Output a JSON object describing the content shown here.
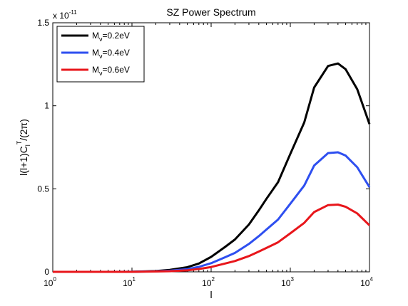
{
  "chart_data": {
    "type": "line",
    "title": "SZ Power Spectrum",
    "xlabel": "l",
    "ylabel": "l(l+1)C_l^T/(2π)",
    "x_scale": "log",
    "xlim": [
      1,
      10000
    ],
    "ylim": [
      0,
      1.5e-11
    ],
    "exponent_label": "x 10",
    "exponent_value": "-11",
    "x_ticks": [
      {
        "base": "10",
        "exp": "0"
      },
      {
        "base": "10",
        "exp": "1"
      },
      {
        "base": "10",
        "exp": "2"
      },
      {
        "base": "10",
        "exp": "3"
      },
      {
        "base": "10",
        "exp": "4"
      }
    ],
    "y_ticks": [
      "0",
      "0.5",
      "1",
      "1.5"
    ],
    "legend_position": "top-left",
    "grid": false,
    "series": [
      {
        "name": "M_ν=0.2eV",
        "label_prefix": "M",
        "label_sub": "ν",
        "label_suffix": "=0.2eV",
        "color": "#000000",
        "x": [
          1,
          2,
          5,
          10,
          20,
          30,
          50,
          70,
          100,
          150,
          200,
          300,
          400,
          500,
          700,
          1000,
          1500,
          2000,
          3000,
          4000,
          5000,
          7000,
          10000
        ],
        "y": [
          0,
          0,
          0,
          5e-15,
          5e-14,
          1.2e-13,
          2.8e-13,
          5e-13,
          9e-13,
          1.5e-12,
          1.95e-12,
          2.85e-12,
          3.7e-12,
          4.4e-12,
          5.4e-12,
          7.1e-12,
          9e-12,
          1.11e-11,
          1.24e-11,
          1.255e-11,
          1.22e-11,
          1.1e-11,
          8.9e-12
        ]
      },
      {
        "name": "M_ν=0.4eV",
        "label_prefix": "M",
        "label_sub": "ν",
        "label_suffix": "=0.4eV",
        "color": "#2e4ff0",
        "x": [
          1,
          2,
          5,
          10,
          20,
          30,
          50,
          70,
          100,
          150,
          200,
          300,
          400,
          500,
          700,
          1000,
          1500,
          2000,
          3000,
          4000,
          5000,
          7000,
          10000
        ],
        "y": [
          0,
          0,
          0,
          3e-15,
          3e-14,
          7e-14,
          1.6e-13,
          3e-13,
          5.2e-13,
          8.8e-13,
          1.14e-12,
          1.68e-12,
          2.15e-12,
          2.55e-12,
          3.15e-12,
          4.1e-12,
          5.2e-12,
          6.4e-12,
          7.15e-12,
          7.2e-12,
          7e-12,
          6.3e-12,
          5.1e-12
        ]
      },
      {
        "name": "M_ν=0.6eV",
        "label_prefix": "M",
        "label_sub": "ν",
        "label_suffix": "=0.6eV",
        "color": "#e8161b",
        "x": [
          1,
          2,
          5,
          10,
          20,
          30,
          50,
          70,
          100,
          150,
          200,
          300,
          400,
          500,
          700,
          1000,
          1500,
          2000,
          3000,
          4000,
          5000,
          7000,
          10000
        ],
        "y": [
          0,
          0,
          0,
          2e-15,
          2e-14,
          4e-14,
          9e-14,
          1.7e-13,
          2.9e-13,
          5e-13,
          6.5e-13,
          9.5e-13,
          1.22e-12,
          1.44e-12,
          1.78e-12,
          2.32e-12,
          2.95e-12,
          3.6e-12,
          4.02e-12,
          4.05e-12,
          3.92e-12,
          3.52e-12,
          2.8e-12
        ]
      }
    ]
  }
}
